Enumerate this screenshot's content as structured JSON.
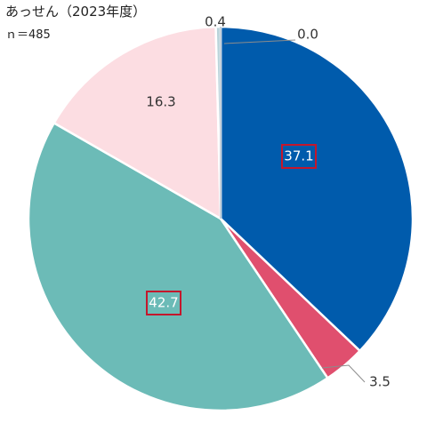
{
  "title": "あっせん（2023年度）",
  "n_label": "ｎ＝485",
  "chart_data": {
    "type": "pie",
    "values": [
      37.1,
      3.5,
      42.7,
      16.3,
      0.4,
      0.0
    ],
    "labels": [
      "37.1",
      "3.5",
      "42.7",
      "16.3",
      "0.4",
      "0.0"
    ],
    "colors": [
      "#005BAC",
      "#E04F6E",
      "#6CBBB7",
      "#FCDDE2",
      "#B9D3DA",
      "#8FA4B8"
    ],
    "start": "12 o'clock",
    "direction": "clockwise",
    "highlighted_labels": [
      "37.1",
      "42.7"
    ],
    "highlight_color": "#C4172C",
    "title": "",
    "legend": "none"
  }
}
